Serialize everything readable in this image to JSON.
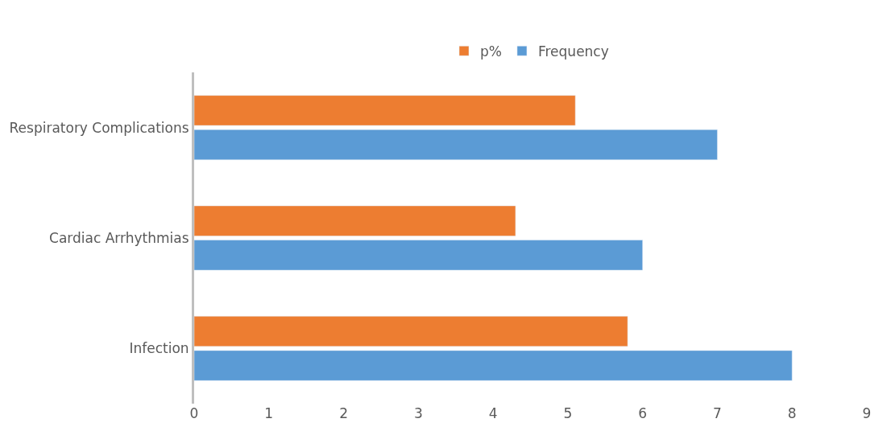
{
  "chart_data": {
    "type": "bar",
    "orientation": "horizontal",
    "categories": [
      "Respiratory Complications",
      "Cardiac Arrhythmias",
      "Infection"
    ],
    "series": [
      {
        "name": "p%",
        "color": "#ed7d31",
        "values": [
          5.1,
          4.3,
          5.8
        ]
      },
      {
        "name": "Frequency",
        "color": "#5b9bd5",
        "values": [
          7.0,
          6.0,
          8.0
        ]
      }
    ],
    "xlim": [
      0,
      9
    ],
    "xticks": [
      0,
      1,
      2,
      3,
      4,
      5,
      6,
      7,
      8,
      9
    ],
    "grid": false,
    "legend": "top"
  }
}
